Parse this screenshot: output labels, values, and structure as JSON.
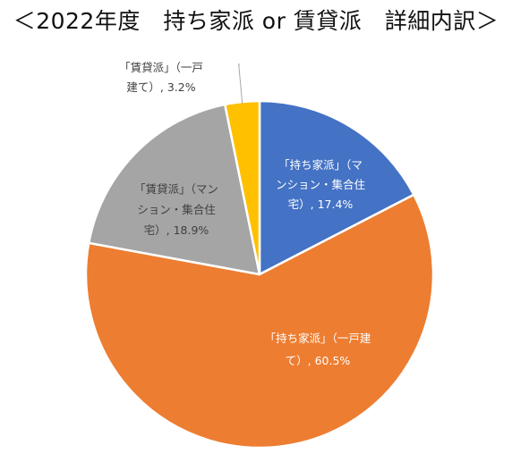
{
  "chart_data": {
    "type": "pie",
    "title": "＜2022年度　持ち家派 or 賃貸派　詳細内訳＞",
    "slices": [
      {
        "label_lines": [
          "「持ち家派」（マ",
          "ンション・集合住",
          "宅）, 17.4%"
        ],
        "value": 17.4,
        "color": "#4472c4",
        "text_color": "#ffffff"
      },
      {
        "label_lines": [
          "「持ち家派」（一戸建",
          "て）, 60.5%"
        ],
        "value": 60.5,
        "color": "#ed7d31",
        "text_color": "#ffffff"
      },
      {
        "label_lines": [
          "「賃貸派」（マン",
          "ション・集合住",
          "宅）, 18.9%"
        ],
        "value": 18.9,
        "color": "#a5a5a5",
        "text_color": "#404040"
      },
      {
        "label_lines": [
          "「賃貸派」（一戸",
          "建て）, 3.2%"
        ],
        "value": 3.2,
        "color": "#ffc000",
        "text_color": "#404040"
      }
    ],
    "legend": "none"
  }
}
